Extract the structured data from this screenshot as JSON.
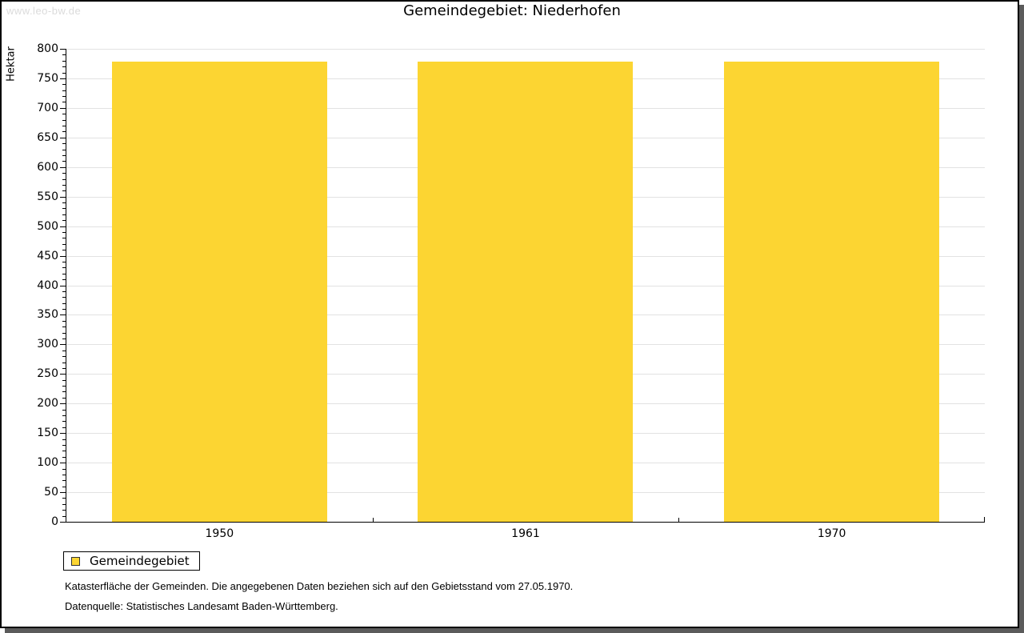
{
  "site": {
    "watermark": "www.leo-bw.de"
  },
  "legend": {
    "label": "Gemeindegebiet"
  },
  "notes": [
    "Katasterfläche der Gemeinden. Die angegebenen Daten beziehen sich auf den Gebietsstand vom 27.05.1970.",
    "Datenquelle: Statistisches Landesamt Baden-Württemberg."
  ],
  "colors": {
    "bar": "#fcd532",
    "grid": "#e2e2e2",
    "axis": "#000000",
    "watermark_text": "#dbdbdb",
    "shadow": "#5b5b5b"
  },
  "chart_data": {
    "type": "bar",
    "title": "Gemeindegebiet: Niederhofen",
    "categories": [
      "1950",
      "1961",
      "1970"
    ],
    "series": [
      {
        "name": "Gemeindegebiet",
        "values": [
          779,
          779,
          779
        ],
        "color": "#fcd532"
      }
    ],
    "xlabel": "",
    "ylabel": "Hektar",
    "ylim": [
      0,
      800
    ],
    "ytick_major": 50,
    "ytick_minor": 10,
    "grid": true,
    "legend_position": "bottom-left"
  }
}
